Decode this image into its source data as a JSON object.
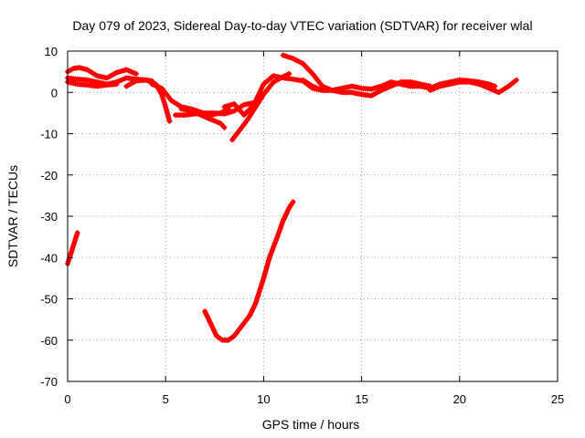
{
  "chart_data": {
    "type": "scatter",
    "title": "Day 079 of 2023, Sidereal Day-to-day VTEC variation (SDTVAR) for receiver wlal",
    "xlabel": "GPS time / hours",
    "ylabel": "SDTVAR / TECUs",
    "xlim": [
      0,
      25
    ],
    "ylim": [
      -70,
      10
    ],
    "xticks": [
      0,
      5,
      10,
      15,
      20,
      25
    ],
    "yticks": [
      -70,
      -60,
      -50,
      -40,
      -30,
      -20,
      -10,
      0,
      10
    ],
    "grid": true,
    "series_color": "#ff0000",
    "series": [
      {
        "name": "segment-1",
        "x": [
          0.0,
          0.1,
          0.2,
          0.3,
          0.4,
          0.5
        ],
        "y": [
          -41.5,
          -40,
          -38.5,
          -37,
          -35.5,
          -34
        ]
      },
      {
        "name": "segment-2",
        "x": [
          0.0,
          0.3,
          0.6,
          1.0,
          1.5,
          2.0,
          2.5,
          3.0,
          3.5
        ],
        "y": [
          5,
          5.8,
          6.0,
          5.5,
          4.0,
          3.5,
          4.8,
          5.5,
          4.5
        ]
      },
      {
        "name": "segment-3",
        "x": [
          0.0,
          0.5,
          1.0,
          1.5,
          2.0,
          2.5,
          3.0,
          3.5,
          4.0,
          4.3
        ],
        "y": [
          3.5,
          3.2,
          3.0,
          2.5,
          2.0,
          2.5,
          3.5,
          3.2,
          3.0,
          2.8
        ]
      },
      {
        "name": "segment-4",
        "x": [
          0.0,
          0.5,
          1.0,
          1.5,
          2.0,
          2.5
        ],
        "y": [
          2.5,
          2.0,
          1.8,
          1.5,
          1.8,
          2.0
        ]
      },
      {
        "name": "segment-5",
        "x": [
          3.0,
          3.5,
          4.0,
          4.5,
          4.8,
          5.0,
          5.2
        ],
        "y": [
          1.5,
          2.8,
          3.0,
          2.0,
          -0.5,
          -3.5,
          -7.0
        ]
      },
      {
        "name": "segment-6",
        "x": [
          4.3,
          4.8,
          5.3,
          5.8,
          6.3,
          6.8,
          7.3,
          7.8,
          8.2
        ],
        "y": [
          2.0,
          1.0,
          -2.0,
          -3.5,
          -4.0,
          -4.8,
          -5.5,
          -5.0,
          -4.0
        ]
      },
      {
        "name": "segment-7",
        "x": [
          5.5,
          6.0,
          6.5,
          7.0,
          7.5,
          8.0,
          8.5,
          9.0,
          9.5,
          9.8
        ],
        "y": [
          -5.5,
          -5.5,
          -5.2,
          -5.0,
          -5.0,
          -5.2,
          -4.5,
          -3.0,
          -2.5,
          -2.0
        ]
      },
      {
        "name": "segment-8",
        "x": [
          5.8,
          6.3,
          6.8,
          7.3,
          7.8,
          8.0
        ],
        "y": [
          -4.0,
          -4.5,
          -5.5,
          -6.5,
          -7.5,
          -8.5
        ]
      },
      {
        "name": "segment-9",
        "x": [
          8.4,
          8.8,
          9.2,
          9.6,
          10.0,
          10.5,
          11.0,
          11.3
        ],
        "y": [
          -11.5,
          -9.0,
          -6.5,
          -3.5,
          -0.5,
          2.5,
          3.8,
          4.5
        ]
      },
      {
        "name": "segment-10",
        "x": [
          8.0,
          8.5,
          9.0,
          9.5,
          10.0,
          10.5,
          11.0,
          11.5,
          12.0,
          12.5,
          13.0
        ],
        "y": [
          -3.5,
          -2.8,
          -5.5,
          -3.0,
          2.0,
          4.0,
          3.5,
          3.2,
          2.8,
          1.0,
          0.5
        ]
      },
      {
        "name": "segment-11",
        "x": [
          11.0,
          11.5,
          12.0,
          12.5,
          13.0,
          13.5,
          14.0,
          14.5,
          15.0,
          15.5,
          16.0,
          16.5,
          17.0,
          17.5,
          18.0,
          18.5
        ],
        "y": [
          9.0,
          8.2,
          7.0,
          4.5,
          1.5,
          0.5,
          1.0,
          1.5,
          1.0,
          0.8,
          1.5,
          2.5,
          2.0,
          1.5,
          1.5,
          1.0
        ]
      },
      {
        "name": "segment-12",
        "x": [
          12.0,
          12.5,
          13.0,
          13.5,
          14.0,
          14.5,
          15.0,
          15.5,
          16.0,
          16.5,
          17.0,
          17.5,
          18.0,
          18.5
        ],
        "y": [
          3.0,
          1.5,
          0.5,
          0.5,
          0.0,
          0.0,
          -0.5,
          -0.8,
          0.5,
          1.5,
          2.5,
          2.5,
          2.0,
          1.5
        ]
      },
      {
        "name": "segment-13",
        "x": [
          18.5,
          19.0,
          19.5,
          20.0,
          20.5,
          21.0,
          21.5,
          22.0,
          22.5,
          22.9
        ],
        "y": [
          0.5,
          1.5,
          2.0,
          2.5,
          2.5,
          2.0,
          1.0,
          0.0,
          1.5,
          3.0
        ]
      },
      {
        "name": "segment-14",
        "x": [
          18.5,
          19.0,
          19.5,
          20.0,
          20.5,
          21.0,
          21.5,
          21.8
        ],
        "y": [
          1.0,
          2.0,
          2.5,
          3.0,
          2.8,
          2.5,
          2.0,
          1.5
        ]
      },
      {
        "name": "segment-15",
        "x": [
          7.0,
          7.3,
          7.6,
          7.9,
          8.2,
          8.5,
          8.9,
          9.3,
          9.6,
          10.0,
          10.3,
          10.7,
          11.0,
          11.3,
          11.5
        ],
        "y": [
          -53,
          -56,
          -59,
          -60,
          -60,
          -59,
          -56.5,
          -54,
          -51,
          -45,
          -40,
          -35,
          -31,
          -28,
          -26.5
        ]
      }
    ]
  }
}
